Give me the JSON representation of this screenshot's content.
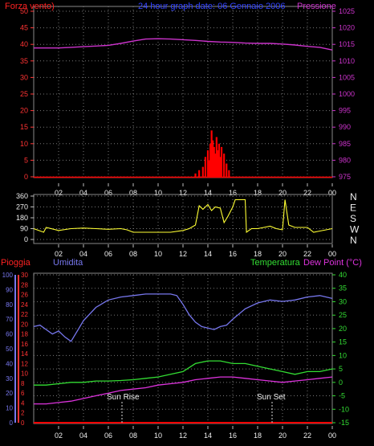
{
  "labels": {
    "title": "24 hour graph date:  06 Gennaio 2006",
    "wind_left": "Forza vento)",
    "pressure_right": "Pressione",
    "rain": "Pioggia",
    "humidity": "Umidita",
    "temperature": "Temperatura",
    "dewpoint": "Dew Point (°C)",
    "sunrise": "Sun Rise",
    "sunset": "Sun Set"
  },
  "colors": {
    "wind": "#ff0000",
    "pressure": "#cc33cc",
    "winddir": "#ffff33",
    "humidity": "#7777ee",
    "temperature": "#33dd33",
    "dewpoint": "#dd33dd",
    "rain": "#ff0000",
    "grid": "#777777",
    "axis": "#dddddd"
  },
  "chart_data": [
    {
      "type": "line",
      "title": "24 hour graph date:  06 Gennaio 2006",
      "x_ticks": [
        "02",
        "04",
        "06",
        "08",
        "10",
        "12",
        "14",
        "16",
        "18",
        "20",
        "22",
        "00"
      ],
      "left_axis": {
        "label": "Forza vento)",
        "ticks": [
          0,
          5,
          10,
          15,
          20,
          25,
          30,
          35,
          40,
          45,
          50
        ],
        "ylim": [
          0,
          50
        ]
      },
      "right_axis": {
        "label": "Pressione",
        "ticks": [
          975,
          980,
          985,
          990,
          995,
          1000,
          1005,
          1010,
          1015,
          1020,
          1025
        ],
        "ylim": [
          975,
          1025
        ]
      },
      "xlim": [
        0,
        24
      ],
      "series": [
        {
          "name": "Pressione",
          "axis": "right",
          "x": [
            0,
            1,
            2,
            3,
            4,
            5,
            6,
            7,
            8,
            9,
            10,
            11,
            12,
            13,
            14,
            15,
            16,
            17,
            18,
            19,
            20,
            21,
            22,
            23,
            24
          ],
          "values": [
            1013.9,
            1013.9,
            1013.9,
            1014.1,
            1014.3,
            1014.5,
            1014.7,
            1015.3,
            1016.0,
            1016.6,
            1016.7,
            1016.6,
            1016.4,
            1016.2,
            1015.9,
            1015.7,
            1015.6,
            1015.4,
            1015.3,
            1015.3,
            1015.1,
            1014.8,
            1014.4,
            1014.1,
            1013.3
          ]
        },
        {
          "name": "Forza vento)",
          "axis": "left",
          "x": [
            13.0,
            13.3,
            13.6,
            13.8,
            14.0,
            14.1,
            14.2,
            14.3,
            14.4,
            14.5,
            14.6,
            14.7,
            14.8,
            14.9,
            15.0,
            15.1,
            15.3,
            15.5,
            15.7
          ],
          "values": [
            1,
            2,
            3,
            6,
            8,
            5,
            10,
            14,
            11,
            9,
            7,
            12,
            8,
            10,
            6,
            9,
            7,
            4,
            2
          ]
        }
      ]
    },
    {
      "type": "line",
      "title": "",
      "xlim": [
        0,
        24
      ],
      "x_ticks": [
        "02",
        "04",
        "06",
        "08",
        "10",
        "12",
        "14",
        "16",
        "18",
        "20",
        "22",
        "00"
      ],
      "left_axis": {
        "ticks": [
          0,
          90,
          180,
          270,
          360
        ],
        "ylim": [
          0,
          360
        ]
      },
      "right_axis": {
        "ticks": [
          "N",
          "W",
          "S",
          "E",
          "N"
        ]
      },
      "series": [
        {
          "name": "",
          "axis": "left",
          "x": [
            0,
            0.8,
            1.0,
            2.0,
            3.0,
            4.0,
            5.0,
            6.0,
            7.0,
            7.5,
            8.0,
            9.0,
            10.0,
            11.0,
            12.0,
            12.5,
            13.0,
            13.3,
            13.6,
            14.0,
            14.3,
            14.6,
            15.0,
            15.3,
            15.6,
            16.0,
            16.2,
            17.0,
            17.1,
            17.5,
            18.0,
            18.5,
            19.0,
            19.5,
            20.0,
            20.2,
            20.5,
            21.0,
            22.0,
            22.5,
            23.0,
            23.5,
            24.0
          ],
          "values": [
            90,
            60,
            100,
            75,
            90,
            95,
            90,
            85,
            90,
            80,
            60,
            60,
            60,
            60,
            75,
            90,
            120,
            280,
            250,
            290,
            240,
            270,
            260,
            140,
            190,
            270,
            330,
            330,
            60,
            90,
            90,
            100,
            110,
            90,
            80,
            330,
            120,
            100,
            100,
            60,
            70,
            80,
            90
          ]
        }
      ]
    },
    {
      "type": "line",
      "title": "",
      "xlim": [
        0,
        24
      ],
      "x_ticks": [
        "02",
        "04",
        "06",
        "08",
        "10",
        "12",
        "14",
        "16",
        "18",
        "20",
        "22",
        "00"
      ],
      "axes": [
        {
          "label": "Umidita",
          "ticks": [
            0,
            10,
            20,
            30,
            40,
            50,
            60,
            70,
            80,
            90,
            100
          ],
          "ylim": [
            0,
            100
          ]
        },
        {
          "label": "Pioggia",
          "ticks": [
            0,
            2,
            4,
            6,
            8,
            10,
            12,
            14,
            16,
            18,
            20,
            22,
            24,
            26,
            28,
            30
          ],
          "ylim": [
            0,
            30
          ]
        },
        {
          "label": "Temperatura",
          "ticks": [
            -15,
            -10,
            -5,
            0,
            5,
            10,
            15,
            20,
            25,
            30,
            35,
            40
          ],
          "ylim": [
            -15,
            40
          ]
        }
      ],
      "annotations": [
        "Sun Rise",
        "Sun Set"
      ],
      "series": [
        {
          "name": "Umidita",
          "axis": "Umidita",
          "x": [
            0,
            0.5,
            1,
            1.5,
            2,
            2.5,
            3,
            3.5,
            4,
            5,
            6,
            7,
            8,
            9,
            10,
            11,
            11.5,
            12,
            12.5,
            13,
            13.5,
            14,
            14.5,
            15,
            15.5,
            16,
            17,
            18,
            19,
            20,
            21,
            22,
            23,
            24
          ],
          "values": [
            65,
            66,
            63,
            60,
            62,
            58,
            55,
            62,
            69,
            78,
            83,
            85,
            86,
            87,
            87,
            87,
            86,
            80,
            73,
            68,
            65,
            64,
            63,
            65,
            66,
            70,
            77,
            81,
            83,
            82,
            83,
            85,
            86,
            84
          ]
        },
        {
          "name": "Temperatura",
          "axis": "Temperatura",
          "x": [
            0,
            1,
            2,
            3,
            4,
            5,
            6,
            7,
            8,
            9,
            10,
            11,
            12,
            13,
            14,
            15,
            16,
            17,
            18,
            19,
            20,
            21,
            22,
            23,
            24
          ],
          "values": [
            -1,
            -1,
            -0.5,
            0,
            0,
            0.5,
            0.5,
            0.7,
            1,
            1.5,
            2,
            3,
            4,
            7,
            8,
            8,
            7,
            7,
            6,
            5,
            4,
            3,
            4,
            4,
            5
          ]
        },
        {
          "name": "Dew Point (°C)",
          "axis": "Temperatura",
          "x": [
            0,
            1,
            2,
            3,
            4,
            5,
            6,
            7,
            8,
            9,
            10,
            11,
            12,
            13,
            14,
            15,
            16,
            17,
            18,
            19,
            20,
            21,
            22,
            23,
            24
          ],
          "values": [
            -8,
            -8,
            -7.5,
            -7,
            -6,
            -5,
            -4,
            -3,
            -2.5,
            -2,
            -1,
            -0.5,
            0,
            1,
            1.5,
            2,
            2,
            1.5,
            1,
            0.5,
            0,
            0.5,
            1,
            1.5,
            2
          ]
        },
        {
          "name": "Pioggia",
          "axis": "Pioggia",
          "x": [
            0,
            24
          ],
          "values": [
            0,
            0
          ]
        }
      ]
    }
  ]
}
